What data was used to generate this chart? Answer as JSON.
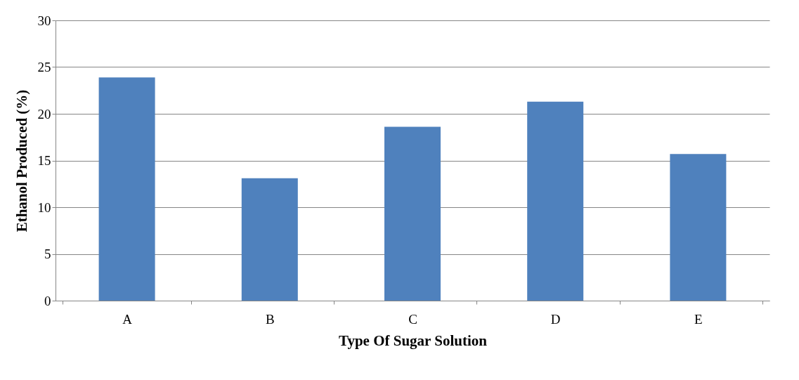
{
  "chart_data": {
    "type": "bar",
    "xlabel": "Type Of Sugar Solution",
    "ylabel": "Ethanol Produced (%)",
    "categories": [
      "A",
      "B",
      "C",
      "D",
      "E"
    ],
    "values": [
      23.9,
      13.1,
      18.6,
      21.3,
      15.7
    ],
    "color": "#4f81bd",
    "ylim": [
      0,
      30
    ],
    "yticks": [
      0,
      5,
      10,
      15,
      20,
      25,
      30
    ],
    "grid": "y"
  }
}
